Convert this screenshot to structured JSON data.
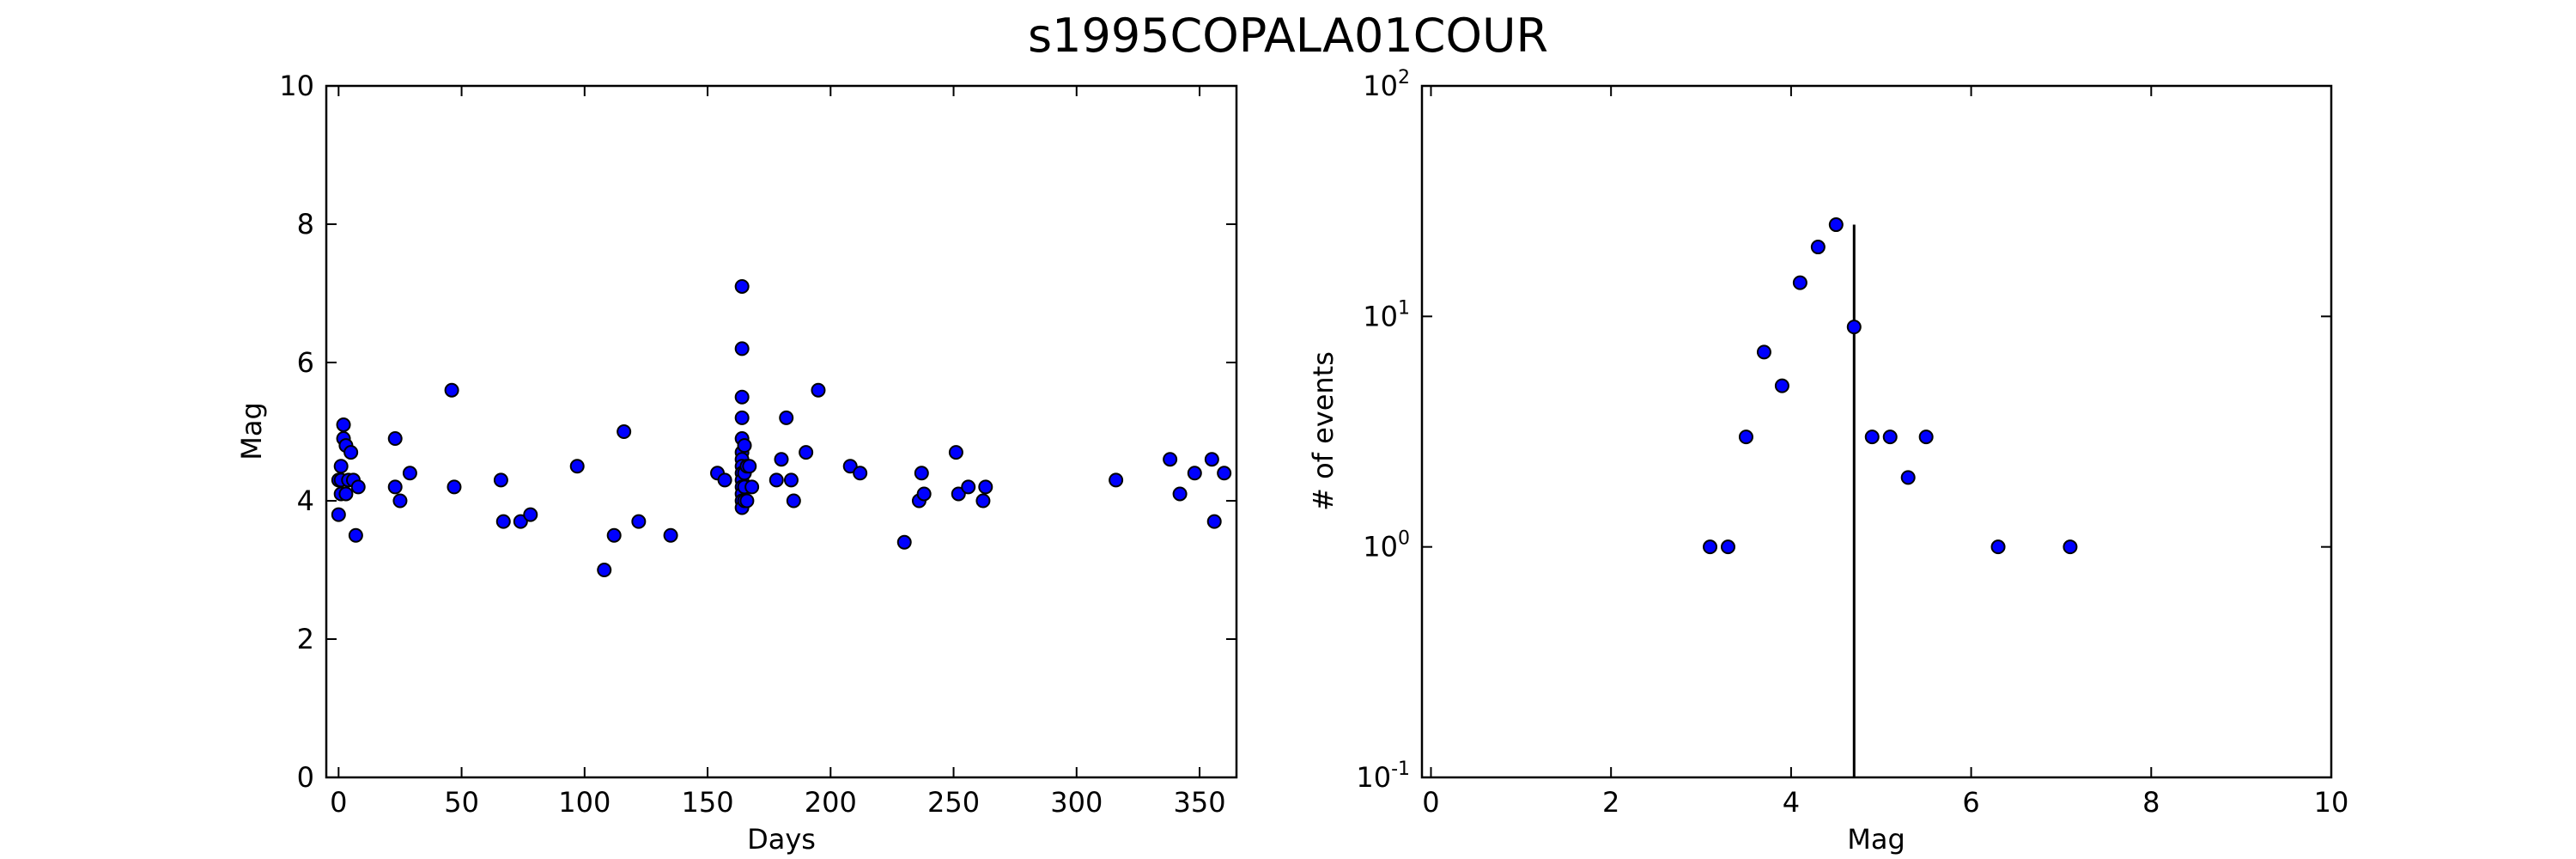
{
  "figure": {
    "title": "s1995COPALA01COUR"
  },
  "chart_data": [
    {
      "type": "scatter",
      "xlabel": "Days",
      "ylabel": "Mag",
      "xlim": [
        -5,
        365
      ],
      "ylim": [
        0,
        10
      ],
      "xticks": [
        0,
        50,
        100,
        150,
        200,
        250,
        300,
        350
      ],
      "yticks": [
        0,
        2,
        4,
        6,
        8,
        10
      ],
      "x": [
        0,
        0,
        1,
        1,
        1,
        2,
        2,
        3,
        3,
        4,
        5,
        6,
        7,
        8,
        23,
        23,
        25,
        29,
        46,
        47,
        66,
        67,
        74,
        78,
        97,
        108,
        112,
        116,
        122,
        135,
        154,
        157,
        164,
        164,
        164,
        164,
        164,
        164,
        164,
        164,
        164,
        164,
        164,
        164,
        164,
        164,
        165,
        165,
        165,
        165,
        166,
        166,
        167,
        168,
        178,
        180,
        182,
        184,
        185,
        190,
        195,
        208,
        212,
        230,
        236,
        237,
        238,
        251,
        252,
        256,
        262,
        263,
        316,
        338,
        342,
        348,
        355,
        356,
        360
      ],
      "y": [
        4.3,
        3.8,
        4.5,
        4.1,
        4.3,
        5.1,
        4.9,
        4.8,
        4.1,
        4.3,
        4.7,
        4.3,
        3.5,
        4.2,
        4.9,
        4.2,
        4.0,
        4.4,
        5.6,
        4.2,
        4.3,
        3.7,
        3.7,
        3.8,
        4.5,
        3.0,
        3.5,
        5.0,
        3.7,
        3.5,
        4.4,
        4.3,
        7.1,
        6.2,
        5.5,
        5.2,
        4.9,
        4.7,
        4.6,
        4.5,
        4.4,
        4.3,
        4.2,
        4.1,
        4.0,
        3.9,
        4.8,
        4.4,
        4.2,
        4.0,
        4.5,
        4.0,
        4.5,
        4.2,
        4.3,
        4.6,
        5.2,
        4.3,
        4.0,
        4.7,
        5.6,
        4.5,
        4.4,
        3.4,
        4.0,
        4.4,
        4.1,
        4.7,
        4.1,
        4.2,
        4.0,
        4.2,
        4.3,
        4.6,
        4.1,
        4.4,
        4.6,
        3.7,
        4.4
      ]
    },
    {
      "type": "scatter",
      "xlabel": "Mag",
      "ylabel": "# of events",
      "yscale": "log",
      "xlim": [
        -0.1,
        10
      ],
      "ylim": [
        0.1,
        100
      ],
      "xticks": [
        0,
        2,
        4,
        6,
        8,
        10
      ],
      "yticks": [
        {
          "base": "10",
          "exp": "-1"
        },
        {
          "base": "10",
          "exp": "0"
        },
        {
          "base": "10",
          "exp": "1"
        },
        {
          "base": "10",
          "exp": "2"
        }
      ],
      "x": [
        3.1,
        3.3,
        3.5,
        3.7,
        3.9,
        4.1,
        4.3,
        4.5,
        4.7,
        4.9,
        5.1,
        5.3,
        5.5,
        6.3,
        7.1
      ],
      "y": [
        1,
        1,
        3,
        7,
        5,
        14,
        20,
        25,
        9,
        3,
        3,
        2,
        3,
        1,
        1
      ],
      "vline": {
        "x": 4.7,
        "y_top": 25
      }
    }
  ]
}
